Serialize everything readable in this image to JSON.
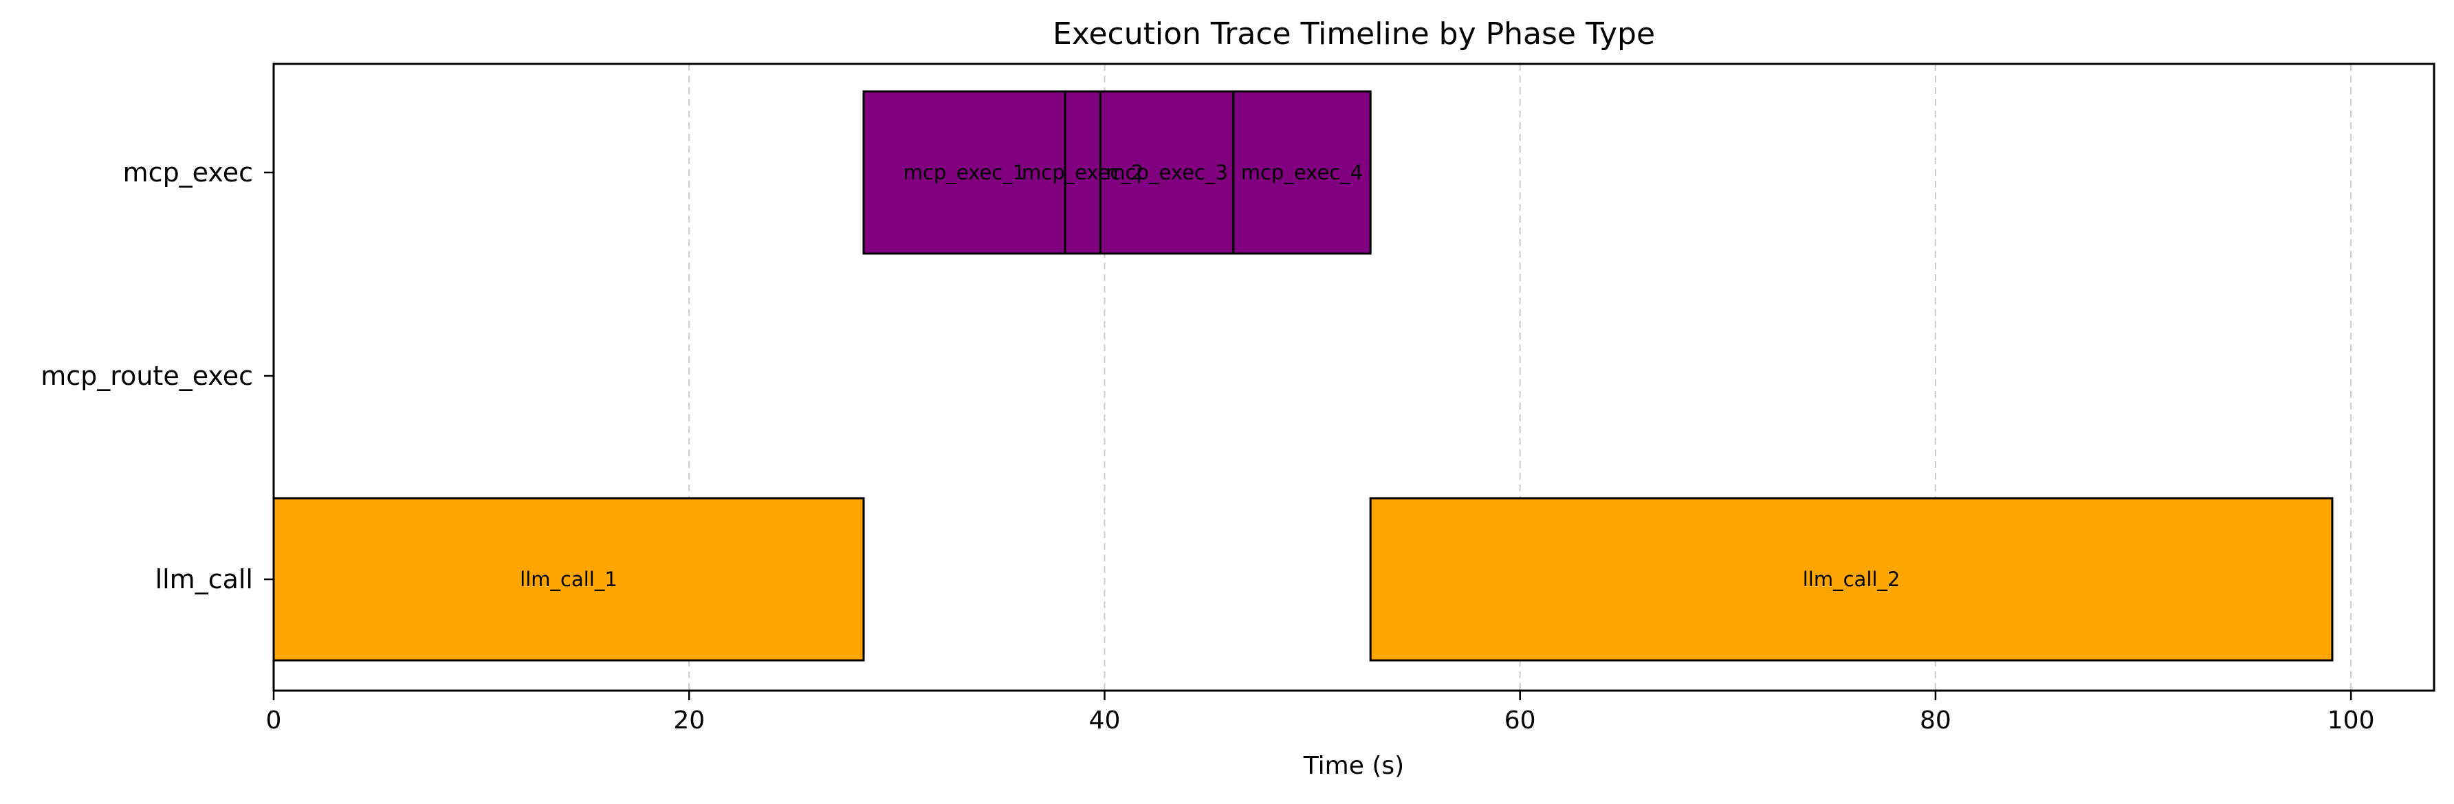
{
  "chart_data": {
    "type": "gantt",
    "title": "Execution Trace Timeline by Phase Type",
    "xlabel": "Time (s)",
    "ylabel": "",
    "xlim": [
      0,
      104
    ],
    "x_ticks": [
      0,
      20,
      40,
      60,
      80,
      100
    ],
    "grid": "x-dashed",
    "categories": [
      "llm_call",
      "mcp_route_exec",
      "mcp_exec"
    ],
    "tasks": [
      {
        "label": "llm_call_1",
        "category": "llm_call",
        "start": 0.0,
        "end": 28.4,
        "color": "#FFA500"
      },
      {
        "label": "mcp_exec_1",
        "category": "mcp_exec",
        "start": 28.4,
        "end": 38.1,
        "color": "#800080"
      },
      {
        "label": "mcp_exec_2",
        "category": "mcp_exec",
        "start": 38.1,
        "end": 39.8,
        "color": "#800080"
      },
      {
        "label": "mcp_exec_3",
        "category": "mcp_exec",
        "start": 39.8,
        "end": 46.2,
        "color": "#800080"
      },
      {
        "label": "mcp_exec_4",
        "category": "mcp_exec",
        "start": 46.2,
        "end": 52.8,
        "color": "#800080"
      },
      {
        "label": "llm_call_2",
        "category": "llm_call",
        "start": 52.8,
        "end": 99.1,
        "color": "#FFA500"
      }
    ]
  }
}
